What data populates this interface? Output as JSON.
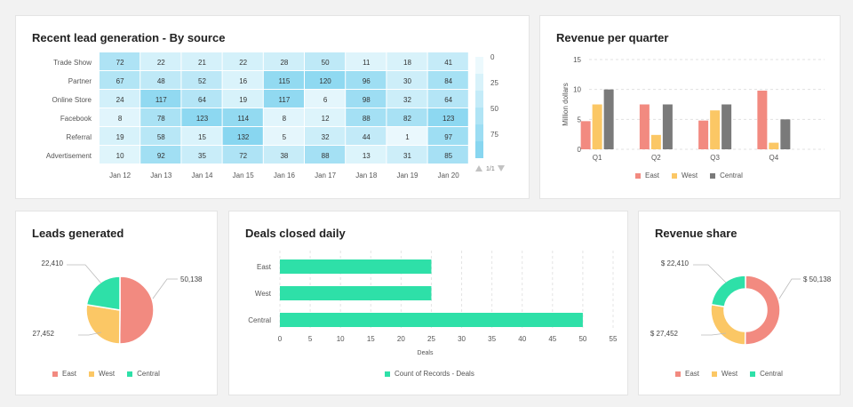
{
  "colors": {
    "east": "#f28a80",
    "west": "#fbc765",
    "central": "#7a7a7a",
    "central_pie": "#2ee0a8",
    "deals": "#2ee0a8"
  },
  "heatmap": {
    "title": "Recent lead generation - By source",
    "pager": {
      "label": "1/1",
      "up_icon": "triangle-up-icon",
      "down_icon": "triangle-down-icon"
    },
    "scale_ticks": [
      "0",
      "25",
      "50",
      "75"
    ]
  },
  "revenue_quarter": {
    "title": "Revenue per quarter",
    "legend": [
      "East",
      "West",
      "Central"
    ]
  },
  "leads": {
    "title": "Leads generated",
    "labels": [
      "50,138",
      "27,452",
      "22,410"
    ],
    "legend": [
      "East",
      "West",
      "Central"
    ]
  },
  "deals": {
    "title": "Deals closed daily",
    "legend": "Count of Records - Deals"
  },
  "revenue_share": {
    "title": "Revenue share",
    "labels": [
      "$ 50,138",
      "$ 27,452",
      "$ 22,410"
    ],
    "legend": [
      "East",
      "West",
      "Central"
    ]
  },
  "chart_data": [
    {
      "type": "heatmap",
      "title": "Recent lead generation - By source",
      "rows": [
        "Trade Show",
        "Partner",
        "Online Store",
        "Facebook",
        "Referral",
        "Advertisement"
      ],
      "columns": [
        "Jan 12",
        "Jan 13",
        "Jan 14",
        "Jan 15",
        "Jan 16",
        "Jan 17",
        "Jan 18",
        "Jan 19",
        "Jan 20"
      ],
      "values": [
        [
          72,
          22,
          21,
          22,
          28,
          50,
          11,
          18,
          41
        ],
        [
          67,
          48,
          52,
          16,
          115,
          120,
          96,
          30,
          84
        ],
        [
          24,
          117,
          64,
          19,
          117,
          6,
          98,
          32,
          64
        ],
        [
          8,
          78,
          123,
          114,
          8,
          12,
          88,
          82,
          123
        ],
        [
          19,
          58,
          15,
          132,
          5,
          32,
          44,
          1,
          97
        ],
        [
          10,
          92,
          35,
          72,
          38,
          88,
          13,
          31,
          85
        ]
      ],
      "scale": [
        0,
        25,
        50,
        75
      ]
    },
    {
      "type": "bar",
      "title": "Revenue per quarter",
      "categories": [
        "Q1",
        "Q2",
        "Q3",
        "Q4"
      ],
      "series": [
        {
          "name": "East",
          "values": [
            4.7,
            7.5,
            4.8,
            9.8
          ]
        },
        {
          "name": "West",
          "values": [
            7.5,
            2.4,
            6.5,
            1.1
          ]
        },
        {
          "name": "Central",
          "values": [
            10,
            7.5,
            7.5,
            5
          ]
        }
      ],
      "ylabel": "Million dollars",
      "yticks": [
        0,
        5,
        10,
        15
      ],
      "ylim": [
        0,
        15
      ],
      "legend": "bottom"
    },
    {
      "type": "pie",
      "title": "Leads generated",
      "slices": [
        {
          "name": "East",
          "value": 50138
        },
        {
          "name": "West",
          "value": 27452
        },
        {
          "name": "Central",
          "value": 22410
        }
      ],
      "legend": "bottom"
    },
    {
      "type": "bar",
      "orientation": "horizontal",
      "title": "Deals closed daily",
      "categories": [
        "East",
        "West",
        "Central"
      ],
      "values": [
        25,
        25,
        50
      ],
      "series": [
        {
          "name": "Count of Records - Deals",
          "values": [
            25,
            25,
            50
          ]
        }
      ],
      "xlabel": "Deals",
      "xticks": [
        0,
        5,
        10,
        15,
        20,
        25,
        30,
        35,
        40,
        45,
        50,
        55
      ],
      "xlim": [
        0,
        55
      ],
      "legend": "bottom"
    },
    {
      "type": "pie",
      "donut": true,
      "title": "Revenue share",
      "slices": [
        {
          "name": "East",
          "value": 50138
        },
        {
          "name": "West",
          "value": 27452
        },
        {
          "name": "Central",
          "value": 22410
        }
      ],
      "legend": "bottom"
    }
  ]
}
